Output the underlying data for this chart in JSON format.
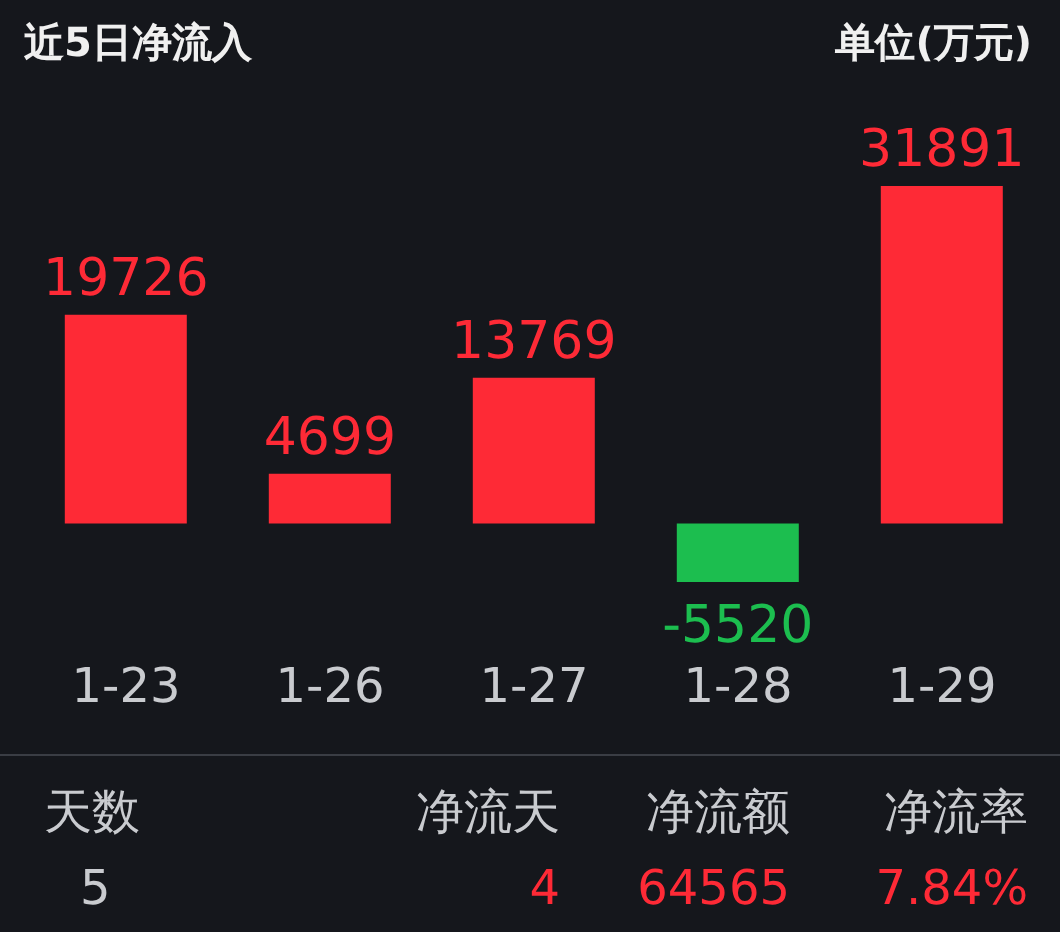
{
  "chart_data": {
    "type": "bar",
    "title": "近5日净流入",
    "categories": [
      "1-23",
      "1-26",
      "1-27",
      "1-28",
      "1-29"
    ],
    "values": [
      19726,
      4699,
      13769,
      -5520,
      31891
    ],
    "colors": [
      "#fe2a36",
      "#fe2a36",
      "#fe2a36",
      "#1cbe4f",
      "#fe2a36"
    ],
    "data_labels": true,
    "grid": false,
    "legend": false,
    "annotations": [
      "单位(万元)",
      "天数",
      "净流天",
      "净流额",
      "净流率",
      "5",
      "4",
      "64565",
      "7.84%"
    ]
  }
}
